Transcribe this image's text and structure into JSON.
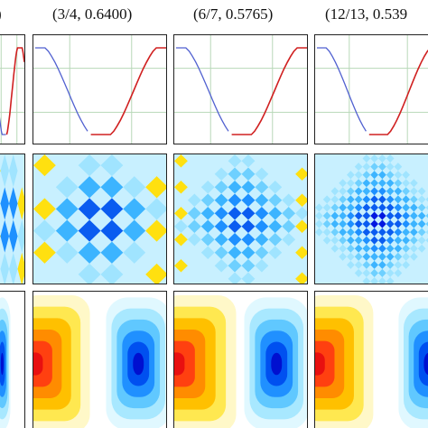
{
  "figure": {
    "column_titles": [
      {
        "text": ")"
      },
      {
        "text": "(3/4, 0.6400)"
      },
      {
        "text": "(6/7, 0.5765)"
      },
      {
        "text": "(12/13, 0.539"
      }
    ],
    "rows": [
      "waveform plots",
      "diamond tile patterns",
      "contour maps"
    ],
    "colors": {
      "wave_left": "#5060d0",
      "wave_right": "#d02020",
      "grid": "#b8d8b8",
      "deep_blue": "#0018e0",
      "light_blue": "#c8f0ff",
      "yellow": "#ffe010",
      "red": "#ff2010"
    }
  }
}
